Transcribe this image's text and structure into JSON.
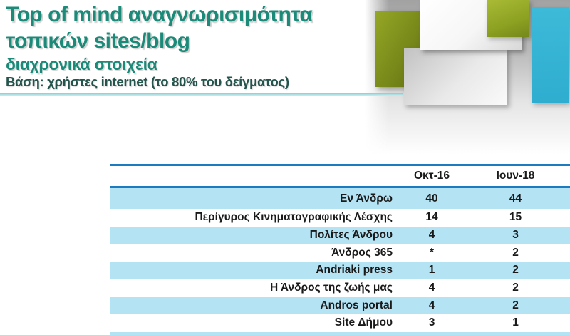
{
  "slide": {
    "title_line1": "Top of mind αναγνωρισιμότητα",
    "title_line2": "τοπικών sites/blog",
    "subtitle": "διαχρονικά στοιχεία",
    "basis": "Βάση: χρήστες internet (το 80% του δείγματος)"
  },
  "table": {
    "columns": [
      "Οκτ-16",
      "Ιουν-18"
    ],
    "rows": [
      {
        "label": "Εν Άνδρω",
        "okt16": "40",
        "ioun18": "44"
      },
      {
        "label": "Περίγυρος Κινηματογραφικής Λέσχης",
        "okt16": "14",
        "ioun18": "15"
      },
      {
        "label": "Πολίτες Άνδρου",
        "okt16": "4",
        "ioun18": "3"
      },
      {
        "label": "Άνδρος 365",
        "okt16": "*",
        "ioun18": "2"
      },
      {
        "label": "Andriaki press",
        "okt16": "1",
        "ioun18": "2"
      },
      {
        "label": "Η Άνδρος της ζωής μας",
        "okt16": "4",
        "ioun18": "2"
      },
      {
        "label": "Andros portal",
        "okt16": "4",
        "ioun18": "2"
      },
      {
        "label": "Site Δήμου",
        "okt16": "3",
        "ioun18": "1"
      }
    ]
  },
  "colors": {
    "title_teal": "#1b8a79",
    "basis_dark_teal": "#24544c",
    "table_border_blue": "#1d7bbf",
    "row_highlight_blue": "#b4e3f4",
    "table_text": "#1a1a1a",
    "divider_teal": "#63bec4",
    "decor_cyan": "#35b4d3",
    "decor_olive": "#8a9a24"
  }
}
